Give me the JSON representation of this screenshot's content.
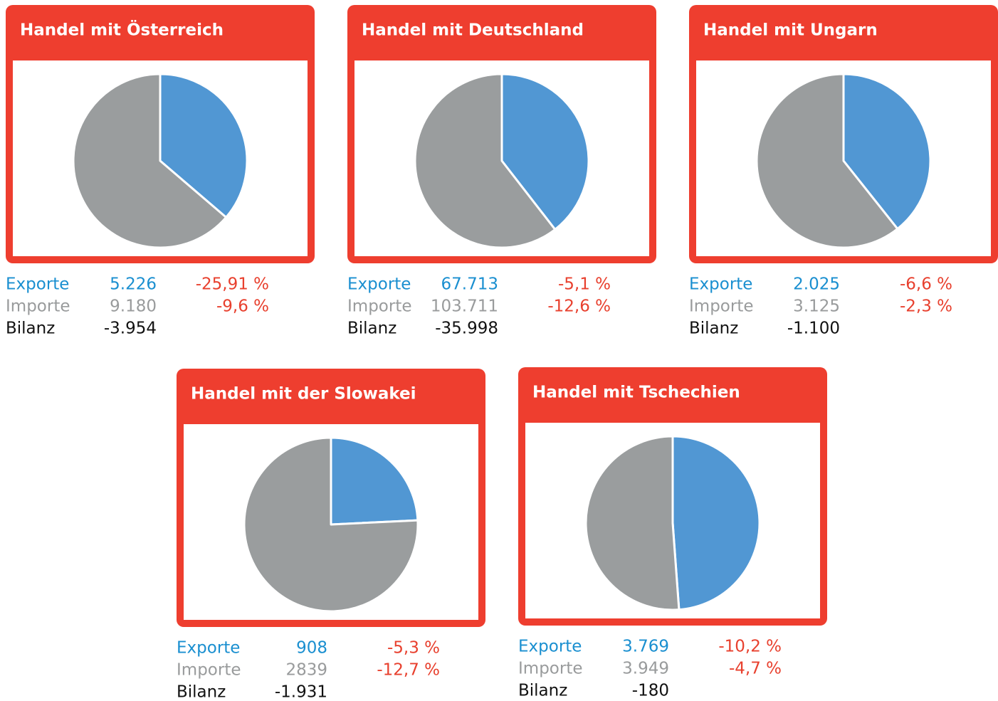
{
  "chart_data": [
    {
      "type": "pie",
      "title": "Handel mit Österreich",
      "categories": [
        "Exporte",
        "Importe"
      ],
      "values": [
        5226,
        9180
      ],
      "value_labels": [
        "5.226",
        "9.180"
      ],
      "colors": [
        "#5197d3",
        "#9a9d9e"
      ],
      "changes": [
        -25.91,
        -9.6
      ],
      "change_labels": [
        "-25,91 %",
        "-9,6 %"
      ],
      "balance_name": "Bilanz",
      "balance": -3954,
      "balance_label": "-3.954"
    },
    {
      "type": "pie",
      "title": "Handel mit Deutschland",
      "categories": [
        "Exporte",
        "Importe"
      ],
      "values": [
        67713,
        103711
      ],
      "value_labels": [
        "67.713",
        "103.711"
      ],
      "colors": [
        "#5197d3",
        "#9a9d9e"
      ],
      "changes": [
        -5.1,
        -12.6
      ],
      "change_labels": [
        "-5,1 %",
        "-12,6 %"
      ],
      "balance_name": "Bilanz",
      "balance": -35998,
      "balance_label": "-35.998"
    },
    {
      "type": "pie",
      "title": "Handel mit Ungarn",
      "categories": [
        "Exporte",
        "Importe"
      ],
      "values": [
        2025,
        3125
      ],
      "value_labels": [
        "2.025",
        "3.125"
      ],
      "colors": [
        "#5197d3",
        "#9a9d9e"
      ],
      "changes": [
        -6.6,
        -2.3
      ],
      "change_labels": [
        "-6,6 %",
        "-2,3 %"
      ],
      "balance_name": "Bilanz",
      "balance": -1100,
      "balance_label": "-1.100"
    },
    {
      "type": "pie",
      "title": "Handel mit der Slowakei",
      "categories": [
        "Exporte",
        "Importe"
      ],
      "values": [
        908,
        2839
      ],
      "colors": [
        "#5197d3",
        "#9a9d9e"
      ],
      "changes": [
        -5.3,
        -12.7
      ],
      "change_labels": [
        "-5,3 %",
        "-12,7 %"
      ],
      "balance_name": "Bilanz",
      "balance": -1931,
      "balance_label": "-1.931"
    },
    {
      "type": "pie",
      "title": "Handel mit Tschechien",
      "categories": [
        "Exporte",
        "Importe"
      ],
      "values": [
        3769,
        3949
      ],
      "value_labels": [
        "3.769",
        "3.949"
      ],
      "colors": [
        "#5197d3",
        "#9a9d9e"
      ],
      "changes": [
        -10.2,
        -4.7
      ],
      "change_labels": [
        "-10,2 %",
        "-4,7 %"
      ],
      "balance_name": "Bilanz",
      "balance": -180
    }
  ]
}
